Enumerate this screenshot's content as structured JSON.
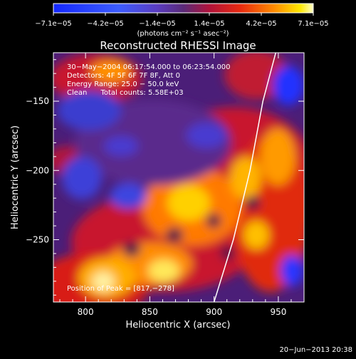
{
  "colorbar": {
    "ticks": [
      "−7.1e−05",
      "−4.2e−05",
      "−1.4e−05",
      "1.4e−05",
      "4.2e−05",
      "7.1e−05"
    ],
    "units_line": "(photons cm⁻² s⁻¹ asec⁻²)"
  },
  "chart_data": {
    "type": "heatmap",
    "title": "Reconstructed RHESSI Image",
    "xlabel": "Heliocentric X (arcsec)",
    "ylabel": "Heliocentric Y (arcsec)",
    "xlim": [
      775,
      970
    ],
    "ylim": [
      -295,
      -115
    ],
    "x_ticks": [
      800,
      850,
      900,
      950
    ],
    "y_ticks": [
      -150,
      -200,
      -250
    ],
    "x_tick_labels": [
      "800",
      "850",
      "900",
      "950"
    ],
    "y_tick_labels": [
      "−150",
      "−200",
      "−250"
    ],
    "color_range": [
      -7.1e-05,
      7.1e-05
    ],
    "annotations": [
      "30−May−2004 06:17:54.000 to 06:23:54.000",
      "Detectors: 4F 5F 6F 7F 8F, Att 0",
      "Energy Range: 25.0 − 50.0 keV",
      "Clean      Total counts: 5.58E+03"
    ],
    "peak_label": "Position of Peak = [817,−278]",
    "limb_curve": [
      [
        900,
        -295
      ],
      [
        915,
        -250
      ],
      [
        928,
        -200
      ],
      [
        938,
        -150
      ],
      [
        948,
        -115
      ]
    ],
    "grid": false
  },
  "footer": {
    "timestamp": "20−Jun−2013 20:38"
  }
}
